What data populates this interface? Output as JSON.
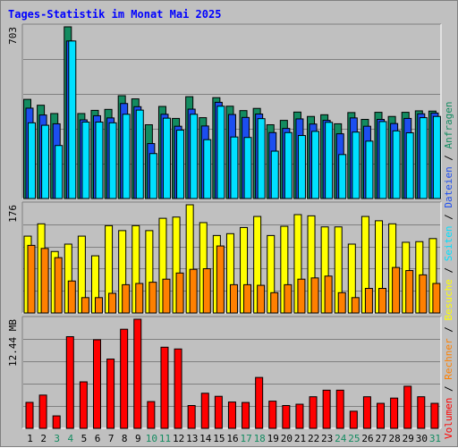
{
  "title": "Tages-Statistik im Monat Mai 2025",
  "colors": {
    "hits": "#138b60",
    "files": "#1c4ef0",
    "pages": "#00e0ff",
    "visits": "#ffff00",
    "sites": "#ff8000",
    "kbytes": "#ff0000",
    "weekend_label": "#138b60",
    "weekday_label": "#000000",
    "panel_bg": "#c0c0c0"
  },
  "legend": [
    {
      "label": "Anfragen",
      "color": "#138b60"
    },
    {
      "label": "Dateien",
      "color": "#1c4ef0"
    },
    {
      "label": "Seiten",
      "color": "#00e0ff"
    },
    {
      "label": "Besuche",
      "color": "#ffff00"
    },
    {
      "label": "Rechner",
      "color": "#ff8000"
    },
    {
      "label": "Volumen",
      "color": "#ff0000"
    }
  ],
  "chart_data": [
    {
      "type": "bar",
      "panel": "requests",
      "ymax_label": "703",
      "ylim": [
        0,
        703
      ],
      "grid": true,
      "categories": [
        "1",
        "2",
        "3",
        "4",
        "5",
        "6",
        "7",
        "8",
        "9",
        "10",
        "11",
        "12",
        "13",
        "14",
        "15",
        "16",
        "17",
        "18",
        "19",
        "20",
        "21",
        "22",
        "23",
        "24",
        "25",
        "26",
        "27",
        "28",
        "29",
        "30",
        "31"
      ],
      "weekend_days": [
        "3",
        "4",
        "10",
        "11",
        "17",
        "18",
        "24",
        "25",
        "31"
      ],
      "series": [
        {
          "name": "Anfragen",
          "values": [
            406,
            382,
            348,
            703,
            348,
            361,
            365,
            421,
            408,
            302,
            377,
            328,
            417,
            331,
            413,
            378,
            360,
            369,
            302,
            320,
            354,
            336,
            343,
            306,
            352,
            324,
            353,
            336,
            353,
            359,
            358
          ]
        },
        {
          "name": "Dateien",
          "values": [
            370,
            342,
            306,
            645,
            322,
            339,
            330,
            389,
            376,
            225,
            345,
            296,
            366,
            297,
            394,
            344,
            332,
            346,
            270,
            287,
            326,
            305,
            320,
            265,
            330,
            296,
            324,
            307,
            328,
            347,
            350
          ]
        },
        {
          "name": "Seiten",
          "values": [
            310,
            300,
            217,
            645,
            313,
            313,
            310,
            345,
            362,
            184,
            329,
            280,
            345,
            241,
            378,
            252,
            250,
            327,
            194,
            270,
            258,
            275,
            312,
            180,
            272,
            235,
            315,
            277,
            269,
            331,
            336
          ]
        }
      ]
    },
    {
      "type": "bar",
      "panel": "visits",
      "ymax_label": "176",
      "ylim": [
        0,
        176
      ],
      "grid": true,
      "categories": [
        "1",
        "2",
        "3",
        "4",
        "5",
        "6",
        "7",
        "8",
        "9",
        "10",
        "11",
        "12",
        "13",
        "14",
        "15",
        "16",
        "17",
        "18",
        "19",
        "20",
        "21",
        "22",
        "23",
        "24",
        "25",
        "26",
        "27",
        "28",
        "29",
        "30",
        "31"
      ],
      "series": [
        {
          "name": "Besuche",
          "values": [
            125,
            145,
            100,
            112,
            125,
            93,
            142,
            134,
            142,
            134,
            154,
            156,
            176,
            147,
            126,
            129,
            139,
            157,
            126,
            141,
            160,
            158,
            140,
            140,
            112,
            157,
            150,
            145,
            115,
            116,
            121
          ]
        },
        {
          "name": "Rechner",
          "values": [
            110,
            105,
            90,
            52,
            25,
            25,
            32,
            46,
            48,
            50,
            55,
            65,
            71,
            72,
            109,
            46,
            46,
            45,
            33,
            46,
            55,
            57,
            60,
            33,
            25,
            40,
            40,
            74,
            69,
            62,
            48
          ]
        }
      ]
    },
    {
      "type": "bar",
      "panel": "volume",
      "ymax_label": "12.44 MB",
      "ylim": [
        0,
        12.44
      ],
      "grid": true,
      "categories": [
        "1",
        "2",
        "3",
        "4",
        "5",
        "6",
        "7",
        "8",
        "9",
        "10",
        "11",
        "12",
        "13",
        "14",
        "15",
        "16",
        "17",
        "18",
        "19",
        "20",
        "21",
        "22",
        "23",
        "24",
        "25",
        "26",
        "27",
        "28",
        "29",
        "30",
        "31"
      ],
      "series": [
        {
          "name": "Volumen",
          "values": [
            2.96,
            3.79,
            1.42,
            10.45,
            5.3,
            10.1,
            7.9,
            11.3,
            12.44,
            3.05,
            9.25,
            9.05,
            2.6,
            4.0,
            3.65,
            3.0,
            2.95,
            5.8,
            3.1,
            2.6,
            2.75,
            3.6,
            4.35,
            4.35,
            1.95,
            3.6,
            2.85,
            3.45,
            4.8,
            3.6,
            2.85
          ]
        }
      ]
    }
  ]
}
